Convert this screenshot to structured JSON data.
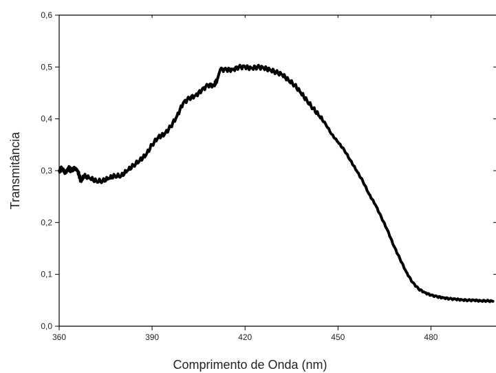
{
  "chart_data": {
    "type": "line",
    "title": "",
    "xlabel": "Comprimento de Onda (nm)",
    "ylabel": "Transmitância",
    "xlim": [
      360,
      501
    ],
    "ylim": [
      0.0,
      0.6
    ],
    "x_ticks": [
      360,
      390,
      420,
      450,
      480
    ],
    "x_tick_labels": [
      "360",
      "390",
      "420",
      "450",
      "480"
    ],
    "y_ticks": [
      0.0,
      0.1,
      0.2,
      0.3,
      0.4,
      0.5,
      0.6
    ],
    "y_tick_labels": [
      "0,0",
      "0,1",
      "0,2",
      "0,3",
      "0,4",
      "0,5",
      "0,6"
    ],
    "grid": false,
    "legend": "none",
    "line_color": "#000000",
    "series": [
      {
        "x": [
          360,
          361,
          362,
          363,
          364,
          365,
          366,
          367,
          368,
          370,
          372,
          374,
          376,
          378,
          380,
          382,
          384,
          386,
          388,
          390,
          392,
          394,
          396,
          398,
          400,
          402,
          404,
          406,
          408,
          410,
          411,
          412,
          414,
          416,
          418,
          420,
          422,
          424,
          426,
          428,
          430,
          432,
          434,
          436,
          438,
          440,
          442,
          444,
          446,
          448,
          450,
          452,
          454,
          456,
          458,
          460,
          462,
          464,
          466,
          468,
          470,
          472,
          474,
          476,
          478,
          480,
          482,
          484,
          486,
          488,
          490,
          492,
          494,
          496,
          498,
          500
        ],
        "y": [
          0.3,
          0.305,
          0.295,
          0.305,
          0.3,
          0.305,
          0.3,
          0.28,
          0.29,
          0.285,
          0.28,
          0.28,
          0.285,
          0.29,
          0.29,
          0.3,
          0.31,
          0.32,
          0.33,
          0.35,
          0.365,
          0.37,
          0.385,
          0.405,
          0.43,
          0.44,
          0.445,
          0.455,
          0.465,
          0.465,
          0.475,
          0.495,
          0.495,
          0.495,
          0.5,
          0.5,
          0.498,
          0.5,
          0.498,
          0.495,
          0.49,
          0.485,
          0.475,
          0.465,
          0.45,
          0.435,
          0.42,
          0.405,
          0.39,
          0.37,
          0.355,
          0.34,
          0.32,
          0.3,
          0.28,
          0.255,
          0.235,
          0.21,
          0.185,
          0.155,
          0.13,
          0.105,
          0.085,
          0.072,
          0.065,
          0.06,
          0.057,
          0.055,
          0.053,
          0.052,
          0.051,
          0.05,
          0.05,
          0.049,
          0.049,
          0.048
        ]
      }
    ]
  }
}
